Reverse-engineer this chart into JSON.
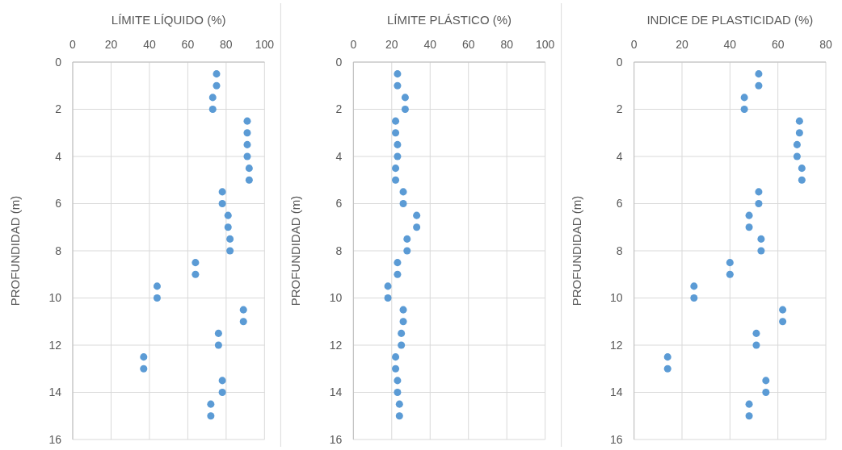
{
  "chart_data": [
    {
      "type": "scatter",
      "xlabel": "LÍMITE LÍQUIDO (%)",
      "ylabel": "PROFUNDIDAD (m)",
      "xlim": [
        0,
        100
      ],
      "xticks": [
        0,
        20,
        40,
        60,
        80,
        100
      ],
      "ylim": [
        16,
        0
      ],
      "yticks": [
        0,
        2,
        4,
        6,
        8,
        10,
        12,
        14,
        16
      ],
      "grid": true,
      "marker": "circle",
      "series": [
        {
          "color": "#5b9bd5",
          "x": [
            75,
            75,
            73,
            73,
            91,
            91,
            91,
            91,
            92,
            92,
            78,
            78,
            81,
            81,
            82,
            82,
            64,
            64,
            44,
            44,
            89,
            89,
            76,
            76,
            37,
            37,
            78,
            78,
            72,
            72
          ],
          "values": [
            0.5,
            1,
            1.5,
            2,
            2.5,
            3,
            3.5,
            4,
            4.5,
            5,
            5.5,
            6,
            6.5,
            7,
            7.5,
            8,
            8.5,
            9,
            9.5,
            10,
            10.5,
            11,
            11.5,
            12,
            12.5,
            13,
            13.5,
            14,
            14.5,
            15
          ]
        }
      ]
    },
    {
      "type": "scatter",
      "xlabel": "LÍMITE PLÁSTICO (%)",
      "ylabel": "PROFUNDIDAD (m)",
      "xlim": [
        0,
        100
      ],
      "xticks": [
        0,
        20,
        40,
        60,
        80,
        100
      ],
      "ylim": [
        16,
        0
      ],
      "yticks": [
        0,
        2,
        4,
        6,
        8,
        10,
        12,
        14,
        16
      ],
      "grid": true,
      "marker": "circle",
      "series": [
        {
          "color": "#5b9bd5",
          "x": [
            23,
            23,
            27,
            27,
            22,
            22,
            23,
            23,
            22,
            22,
            26,
            26,
            33,
            33,
            28,
            28,
            23,
            23,
            18,
            18,
            26,
            26,
            25,
            25,
            22,
            22,
            23,
            23,
            24,
            24
          ],
          "values": [
            0.5,
            1,
            1.5,
            2,
            2.5,
            3,
            3.5,
            4,
            4.5,
            5,
            5.5,
            6,
            6.5,
            7,
            7.5,
            8,
            8.5,
            9,
            9.5,
            10,
            10.5,
            11,
            11.5,
            12,
            12.5,
            13,
            13.5,
            14,
            14.5,
            15
          ]
        }
      ]
    },
    {
      "type": "scatter",
      "xlabel": "INDICE DE PLASTICIDAD (%)",
      "ylabel": "PROFUNDIDAD (m)",
      "xlim": [
        0,
        80
      ],
      "xticks": [
        0,
        20,
        40,
        60,
        80
      ],
      "ylim": [
        16,
        0
      ],
      "yticks": [
        0,
        2,
        4,
        6,
        8,
        10,
        12,
        14,
        16
      ],
      "grid": true,
      "marker": "circle",
      "series": [
        {
          "color": "#5b9bd5",
          "x": [
            52,
            52,
            46,
            46,
            69,
            69,
            68,
            68,
            70,
            70,
            52,
            52,
            48,
            48,
            53,
            53,
            40,
            40,
            25,
            25,
            62,
            62,
            51,
            51,
            14,
            14,
            55,
            55,
            48,
            48
          ],
          "values": [
            0.5,
            1,
            1.5,
            2,
            2.5,
            3,
            3.5,
            4,
            4.5,
            5,
            5.5,
            6,
            6.5,
            7,
            7.5,
            8,
            8.5,
            9,
            9.5,
            10,
            10.5,
            11,
            11.5,
            12,
            12.5,
            13,
            13.5,
            14,
            14.5,
            15
          ]
        }
      ]
    }
  ]
}
